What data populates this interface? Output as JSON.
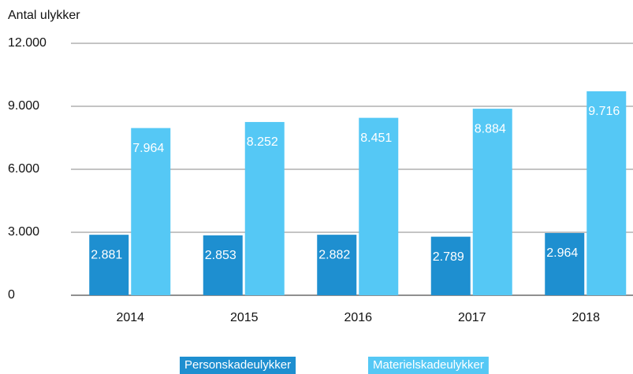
{
  "chart_data": {
    "type": "bar",
    "y_axis_label": "Antal ulykker",
    "categories": [
      "2014",
      "2015",
      "2016",
      "2017",
      "2018"
    ],
    "series": [
      {
        "name": "Personskadeulykker",
        "color": "#1e8fd0",
        "values": [
          2881,
          2853,
          2882,
          2789,
          2964
        ],
        "value_labels": [
          "2.881",
          "2.853",
          "2.882",
          "2.789",
          "2.964"
        ]
      },
      {
        "name": "Materielskadeulykker",
        "color": "#55c8f5",
        "values": [
          7964,
          8252,
          8451,
          8884,
          9716
        ],
        "value_labels": [
          "7.964",
          "8.252",
          "8.451",
          "8.884",
          "9.716"
        ]
      }
    ],
    "ylim": [
      0,
      12000
    ],
    "yticks": [
      0,
      {
        "value": 3000,
        "label": "3.000"
      },
      {
        "value": 6000,
        "label": "6.000"
      },
      {
        "value": 9000,
        "label": "9.000"
      },
      {
        "value": 12000,
        "label": "12.000"
      }
    ],
    "grid": true,
    "legend": "bottom"
  }
}
